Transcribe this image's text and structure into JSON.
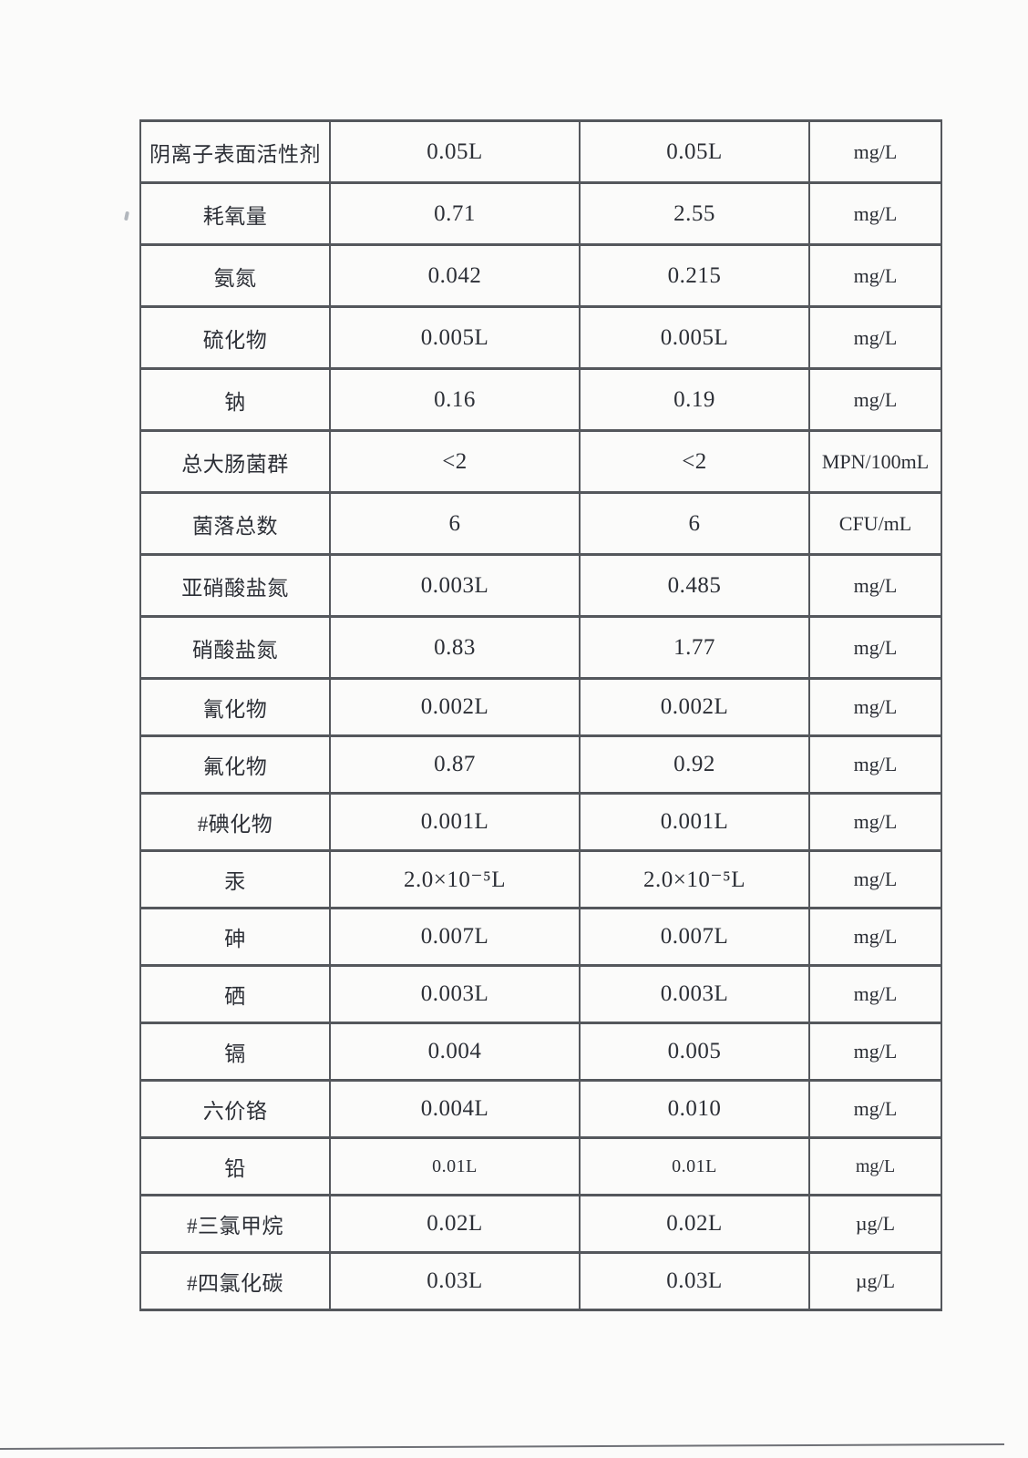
{
  "colors": {
    "ink": "#2c2f36",
    "border": "#54575c",
    "paper": "#fbfbfa"
  },
  "table": {
    "columns": [
      "parameter",
      "sample1_value",
      "sample2_value",
      "unit"
    ],
    "rows": [
      {
        "param": "阴离子表面活性剂",
        "v1": "0.05L",
        "v2": "0.05L",
        "unit": "mg/L"
      },
      {
        "param": "耗氧量",
        "v1": "0.71",
        "v2": "2.55",
        "unit": "mg/L"
      },
      {
        "param": "氨氮",
        "v1": "0.042",
        "v2": "0.215",
        "unit": "mg/L"
      },
      {
        "param": "硫化物",
        "v1": "0.005L",
        "v2": "0.005L",
        "unit": "mg/L"
      },
      {
        "param": "钠",
        "v1": "0.16",
        "v2": "0.19",
        "unit": "mg/L"
      },
      {
        "param": "总大肠菌群",
        "v1": "<2",
        "v2": "<2",
        "unit": "MPN/100mL"
      },
      {
        "param": "菌落总数",
        "v1": "6",
        "v2": "6",
        "unit": "CFU/mL"
      },
      {
        "param": "亚硝酸盐氮",
        "v1": "0.003L",
        "v2": "0.485",
        "unit": "mg/L"
      },
      {
        "param": "硝酸盐氮",
        "v1": "0.83",
        "v2": "1.77",
        "unit": "mg/L"
      },
      {
        "param": "氰化物",
        "v1": "0.002L",
        "v2": "0.002L",
        "unit": "mg/L"
      },
      {
        "param": "氟化物",
        "v1": "0.87",
        "v2": "0.92",
        "unit": "mg/L"
      },
      {
        "param": "#碘化物",
        "v1": "0.001L",
        "v2": "0.001L",
        "unit": "mg/L"
      },
      {
        "param": "汞",
        "v1": "2.0×10⁻⁵L",
        "v2": "2.0×10⁻⁵L",
        "unit": "mg/L"
      },
      {
        "param": "砷",
        "v1": "0.007L",
        "v2": "0.007L",
        "unit": "mg/L"
      },
      {
        "param": "硒",
        "v1": "0.003L",
        "v2": "0.003L",
        "unit": "mg/L"
      },
      {
        "param": "镉",
        "v1": "0.004",
        "v2": "0.005",
        "unit": "mg/L"
      },
      {
        "param": "六价铬",
        "v1": "0.004L",
        "v2": "0.010",
        "unit": "mg/L"
      },
      {
        "param": "铅",
        "v1": "0.01L",
        "v2": "0.01L",
        "unit": "mg/L"
      },
      {
        "param": "#三氯甲烷",
        "v1": "0.02L",
        "v2": "0.02L",
        "unit": "µg/L"
      },
      {
        "param": "#四氯化碳",
        "v1": "0.03L",
        "v2": "0.03L",
        "unit": "µg/L"
      }
    ]
  }
}
